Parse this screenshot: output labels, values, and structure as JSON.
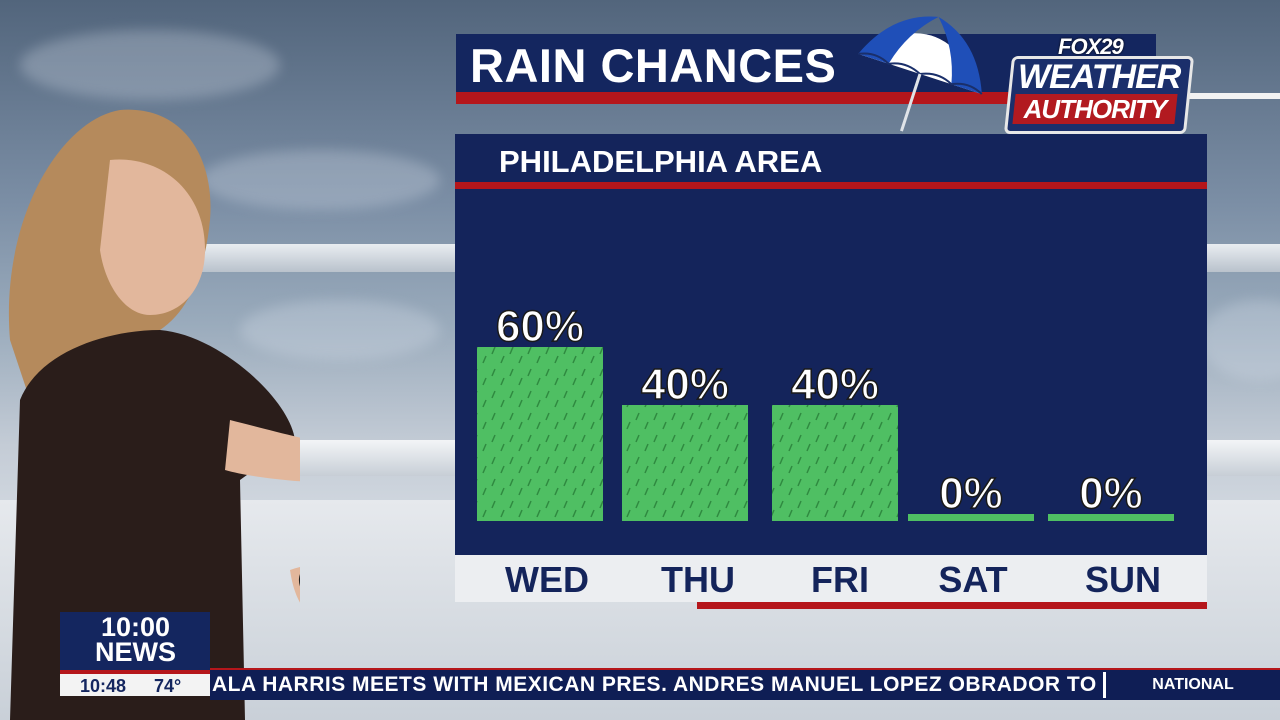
{
  "title": "RAIN CHANCES",
  "subtitle": "PHILADELPHIA AREA",
  "logo": {
    "brand": "FOX29",
    "line1": "WEATHER",
    "line2": "AUTHORITY"
  },
  "colors": {
    "bar": "#4fbf63",
    "panel": "#14245b",
    "accent_red": "#b5161b",
    "day_strip": "#eceef1"
  },
  "chart_data": {
    "type": "bar",
    "title": "RAIN CHANCES",
    "subtitle": "PHILADELPHIA AREA",
    "categories": [
      "WED",
      "THU",
      "FRI",
      "SAT",
      "SUN"
    ],
    "values": [
      60,
      40,
      40,
      0,
      0
    ],
    "labels": [
      "60%",
      "40%",
      "40%",
      "0%",
      "0%"
    ],
    "ylim": [
      0,
      100
    ],
    "grid": false
  },
  "bug": {
    "line1": "10:00",
    "line2": "NEWS",
    "time": "10:48",
    "temp": "74°"
  },
  "ticker": {
    "text": "ALA HARRIS MEETS WITH MEXICAN PRES. ANDRES MANUEL LOPEZ OBRADOR TO",
    "category": "NATIONAL"
  }
}
